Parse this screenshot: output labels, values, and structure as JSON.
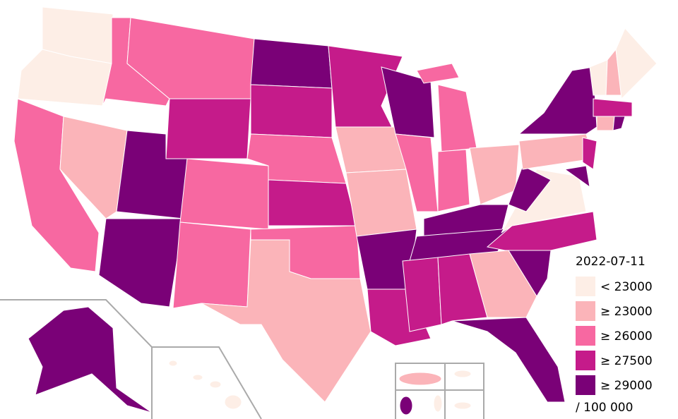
{
  "legend": {
    "title": "2022-07-11",
    "items": [
      {
        "label": "< 23000",
        "color": "#fdeee6"
      },
      {
        "label": "≥ 23000",
        "color": "#fbb4b9"
      },
      {
        "label": "≥ 26000",
        "color": "#f768a1"
      },
      {
        "label": "≥ 27500",
        "color": "#c51b8a"
      },
      {
        "label": "≥ 29000",
        "color": "#7a0177"
      }
    ],
    "note": "/ 100 000"
  }
}
